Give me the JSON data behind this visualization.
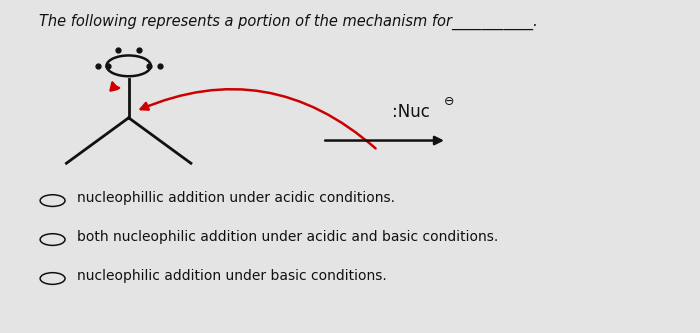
{
  "bg_color": "#e4e4e4",
  "title_text": "The following represents a portion of the mechanism for___________.",
  "title_fontsize": 10.5,
  "arrow_color": "#cc0000",
  "black_color": "#111111",
  "choices": [
    "nucleophillic addition under acidic conditions.",
    "both nucleophilic addition under acidic and basic conditions.",
    "nucleophilic addition under basic conditions."
  ],
  "choices_fontsize": 10
}
